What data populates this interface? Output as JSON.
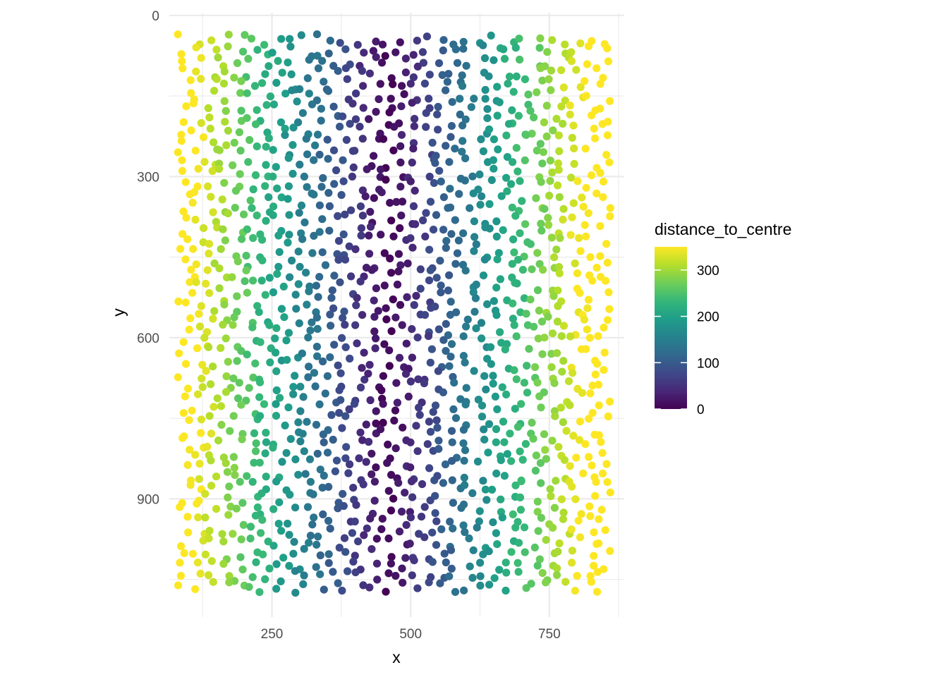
{
  "chart_data": {
    "type": "scatter",
    "title": "",
    "xlabel": "x",
    "ylabel": "y",
    "xlim": [
      65,
      885
    ],
    "ylim": [
      1120,
      -5
    ],
    "y_reversed": true,
    "x_ticks": [
      250,
      500,
      750
    ],
    "x_tick_labels": [
      "250",
      "500",
      "750"
    ],
    "y_ticks": [
      0,
      300,
      600,
      900
    ],
    "y_tick_labels": [
      "0",
      "300",
      "600",
      "900"
    ],
    "grid": true,
    "theme": "minimal",
    "x_range_of_points": [
      80,
      860
    ],
    "y_range_of_points": [
      35,
      1075
    ],
    "centre_x": 460,
    "color_variable": "distance_to_centre",
    "color_scale": {
      "name": "viridis",
      "domain": [
        0,
        350
      ],
      "stops": [
        "#440154",
        "#482878",
        "#3e4989",
        "#31688e",
        "#26828e",
        "#1f9e89",
        "#35b779",
        "#6ece58",
        "#b5de2b",
        "#fde725"
      ]
    },
    "legend": {
      "title": "distance_to_centre",
      "position": "right",
      "ticks": [
        0,
        100,
        200,
        300
      ],
      "tick_labels": [
        "0",
        "100",
        "200",
        "300"
      ]
    },
    "approx_point_count": 1600,
    "point_color": "#fde725"
  }
}
